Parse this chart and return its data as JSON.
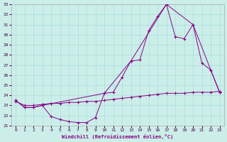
{
  "xlabel": "Windchill (Refroidissement éolien,°C)",
  "bg_color": "#cceee8",
  "line_color": "#880088",
  "grid_color": "#aadddd",
  "ylim": [
    21,
    33
  ],
  "xlim": [
    -0.5,
    23.5
  ],
  "yticks": [
    21,
    22,
    23,
    24,
    25,
    26,
    27,
    28,
    29,
    30,
    31,
    32,
    33
  ],
  "xticks": [
    0,
    1,
    2,
    3,
    4,
    5,
    6,
    7,
    8,
    9,
    10,
    11,
    12,
    13,
    14,
    15,
    16,
    17,
    18,
    19,
    20,
    21,
    22,
    23
  ],
  "series1_x": [
    0,
    1,
    2,
    3,
    4,
    5,
    6,
    7,
    8,
    9,
    10,
    11,
    12,
    13,
    14,
    15,
    16,
    17,
    18,
    19,
    20,
    21,
    22,
    23
  ],
  "series1_y": [
    23.5,
    22.8,
    22.8,
    23.0,
    21.9,
    21.6,
    21.4,
    21.3,
    21.3,
    21.8,
    24.2,
    24.3,
    25.8,
    27.4,
    27.5,
    30.4,
    31.8,
    33.0,
    29.8,
    29.6,
    31.0,
    27.2,
    26.5,
    24.3
  ],
  "series2_x": [
    0,
    1,
    2,
    3,
    10,
    13,
    17,
    20,
    22,
    23
  ],
  "series2_y": [
    23.5,
    22.8,
    22.8,
    23.0,
    24.2,
    27.4,
    33.0,
    31.0,
    26.5,
    24.3
  ],
  "series3_x": [
    0,
    1,
    2,
    3,
    4,
    5,
    6,
    7,
    8,
    9,
    10,
    11,
    12,
    13,
    14,
    15,
    16,
    17,
    18,
    19,
    20,
    21,
    22,
    23
  ],
  "series3_y": [
    23.4,
    23.0,
    23.0,
    23.1,
    23.2,
    23.2,
    23.3,
    23.3,
    23.4,
    23.4,
    23.5,
    23.6,
    23.7,
    23.8,
    23.9,
    24.0,
    24.1,
    24.2,
    24.2,
    24.2,
    24.3,
    24.3,
    24.3,
    24.4
  ]
}
